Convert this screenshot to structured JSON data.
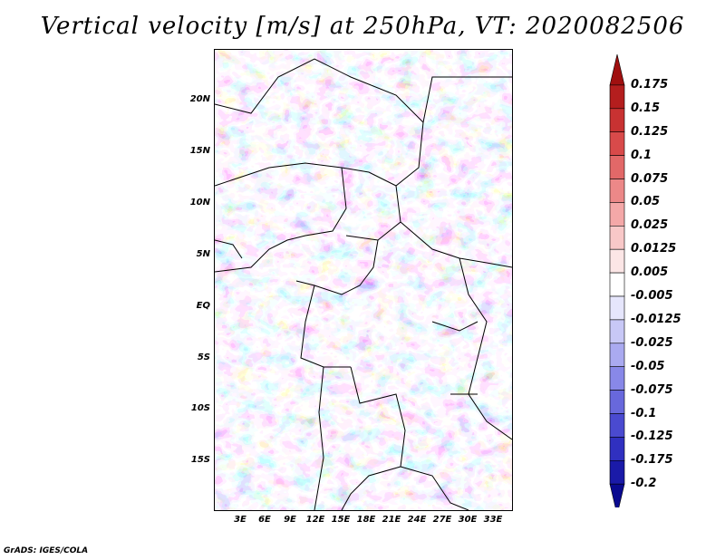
{
  "title": "Vertical velocity [m/s] at 250hPa, VT: 2020082506",
  "credit": "GrADS: IGES/COLA",
  "lat_labels": [
    "20N",
    "15N",
    "10N",
    "5N",
    "EQ",
    "5S",
    "10S",
    "15S"
  ],
  "lon_labels": [
    "3E",
    "6E",
    "9E",
    "12E",
    "15E",
    "18E",
    "21E",
    "24E",
    "27E",
    "30E",
    "33E"
  ],
  "colorbar": {
    "labels": [
      "0.175",
      "0.15",
      "0.125",
      "0.1",
      "0.075",
      "0.05",
      "0.025",
      "0.0125",
      "0.005",
      "-0.005",
      "-0.0125",
      "-0.025",
      "-0.05",
      "-0.075",
      "-0.1",
      "-0.125",
      "-0.175",
      "-0.2"
    ],
    "colors": [
      "#a01010",
      "#b41e1e",
      "#c83232",
      "#d84a4a",
      "#e26868",
      "#ec8888",
      "#f4a8a8",
      "#f8c8c8",
      "#fce6e6",
      "#ffffff",
      "#e6e6fc",
      "#c8c8f6",
      "#aaaaf0",
      "#8888e8",
      "#6868dc",
      "#4a4ad0",
      "#3030c0",
      "#1a1aa8",
      "#0a0a90"
    ]
  }
}
